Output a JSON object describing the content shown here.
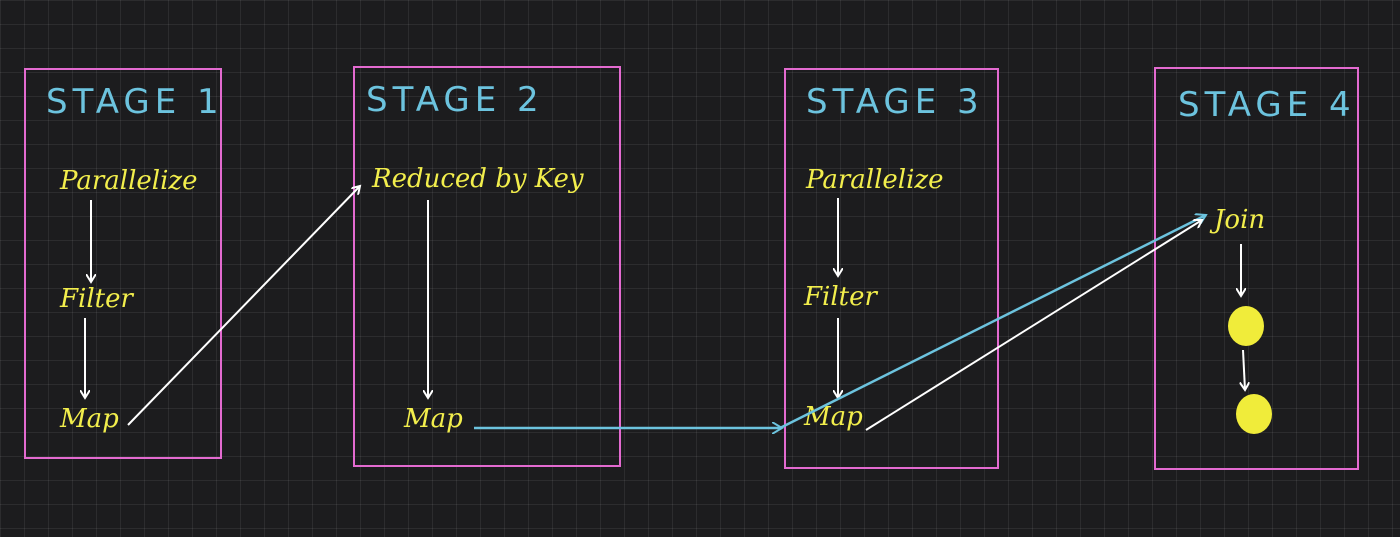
{
  "stages": [
    {
      "title": "STAGE 1",
      "nodes": [
        "Parallelize",
        "Filter",
        "Map"
      ]
    },
    {
      "title": "STAGE 2",
      "nodes": [
        "Reduced by Key",
        "Map"
      ]
    },
    {
      "title": "STAGE 3",
      "nodes": [
        "Parallelize",
        "Filter",
        "Map"
      ]
    },
    {
      "title": "STAGE 4",
      "nodes": [
        "Join"
      ]
    }
  ],
  "colors": {
    "background": "#1c1c1e",
    "stage_border": "#e36ad0",
    "stage_title": "#6cc3de",
    "node_text": "#f2ee4c",
    "node_dot": "#f0ec3a",
    "arrow_white": "#ffffff",
    "arrow_cyan": "#6cc3de"
  }
}
